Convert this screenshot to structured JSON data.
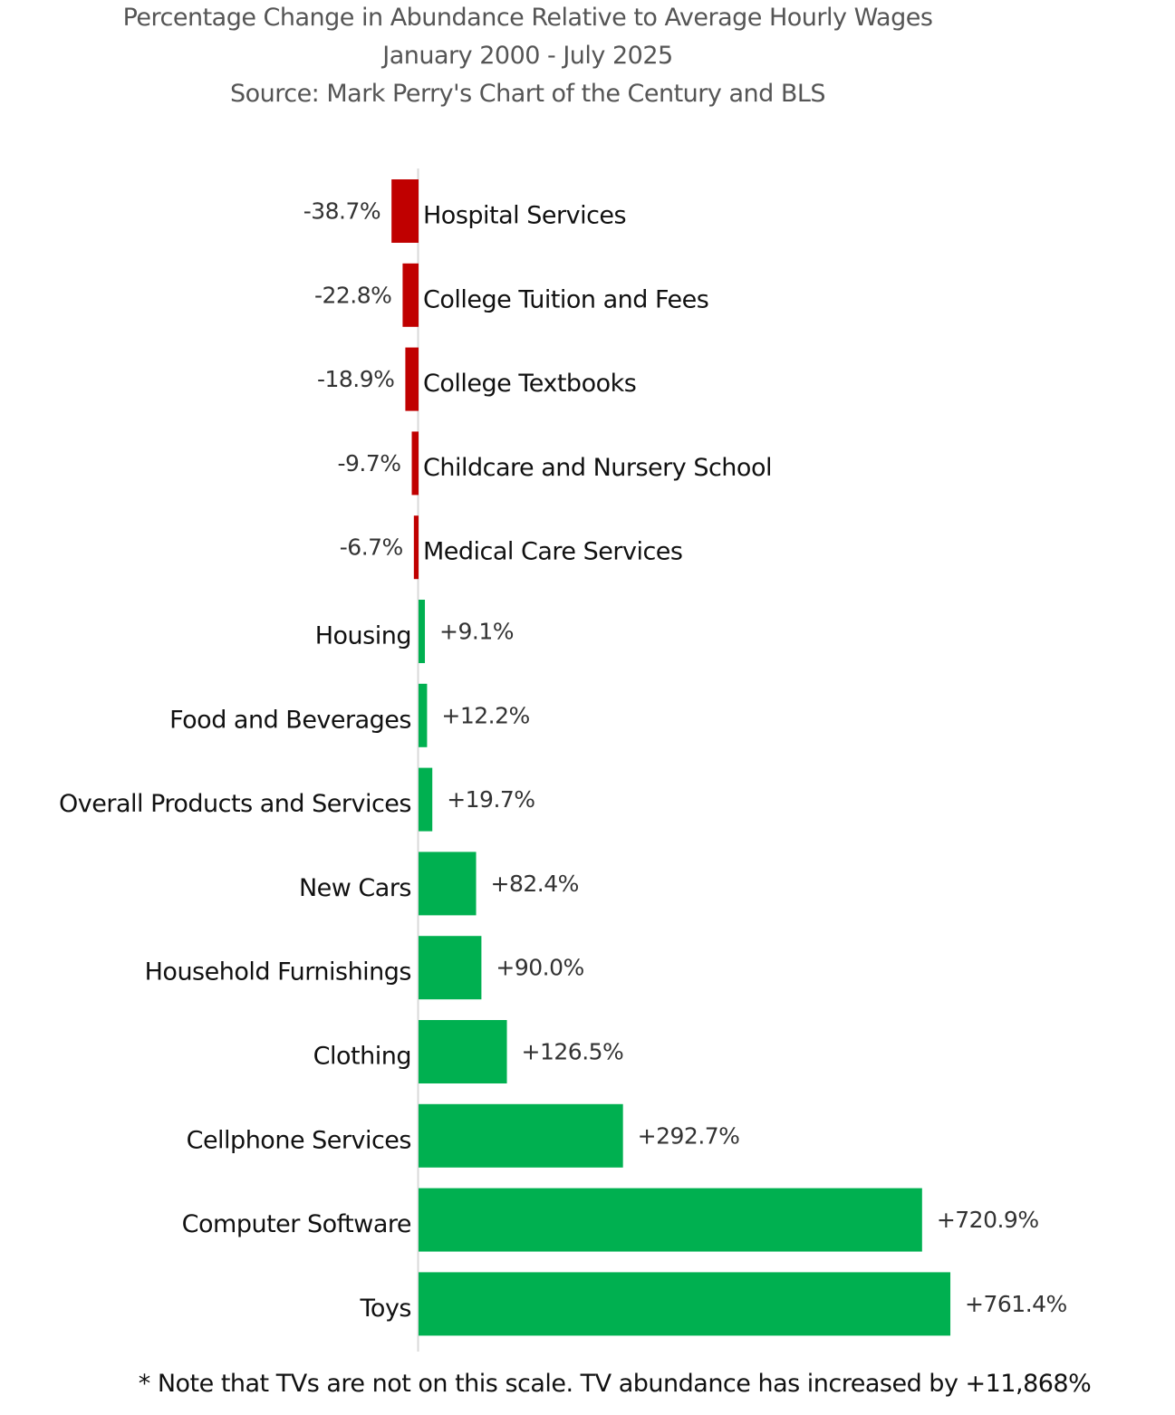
{
  "chart_data": {
    "type": "bar",
    "orientation": "horizontal",
    "title": "Percentage Change in Abundance Relative to Average Hourly Wages",
    "subtitle": "January 2000 - July 2025",
    "source": "Source: Mark Perry's Chart of the Century and BLS",
    "footnote": "* Note that TVs are not on this scale. TV abundance has increased by +11,868%",
    "xlabel": "",
    "ylabel": "",
    "xlim": [
      -40,
      800
    ],
    "grid": false,
    "legend": "none",
    "colors": {
      "negative": "#c00000",
      "positive": "#00b050"
    },
    "categories": [
      "Hospital Services",
      "College Tuition and Fees",
      "College Textbooks",
      "Childcare and Nursery School",
      "Medical Care Services",
      "Housing",
      "Food and Beverages",
      "Overall Products and Services",
      "New Cars",
      "Household Furnishings",
      "Clothing",
      "Cellphone Services",
      "Computer Software",
      "Toys"
    ],
    "values": [
      -38.7,
      -22.8,
      -18.9,
      -9.7,
      -6.7,
      9.1,
      12.2,
      19.7,
      82.4,
      90.0,
      126.5,
      292.7,
      720.9,
      761.4
    ],
    "value_labels": [
      "-38.7%",
      "-22.8%",
      "-18.9%",
      "-9.7%",
      "-6.7%",
      "+9.1%",
      "+12.2%",
      "+19.7%",
      "+82.4%",
      "+90.0%",
      "+126.5%",
      "+292.7%",
      "+720.9%",
      "+761.4%"
    ]
  }
}
